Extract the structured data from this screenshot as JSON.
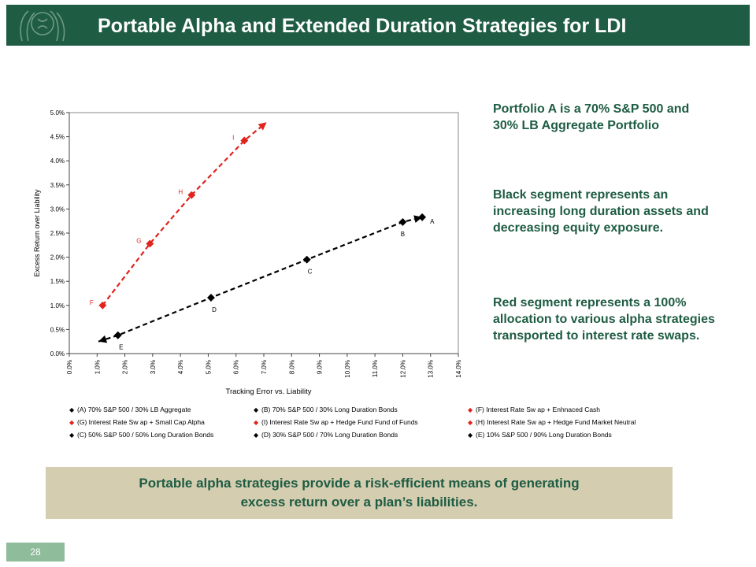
{
  "header": {
    "title": "Portable Alpha and Extended Duration Strategies for LDI"
  },
  "chart_data": {
    "type": "scatter",
    "xlabel": "Tracking Error vs. Liability",
    "ylabel": "Excess Return over Liability",
    "xlim": [
      0,
      14
    ],
    "ylim": [
      0,
      5
    ],
    "x_ticks": [
      "0.0%",
      "1.0%",
      "2.0%",
      "3.0%",
      "4.0%",
      "5.0%",
      "6.0%",
      "7.0%",
      "8.0%",
      "9.0%",
      "10.0%",
      "11.0%",
      "12.0%",
      "13.0%",
      "14.0%"
    ],
    "y_ticks": [
      "0.0%",
      "0.5%",
      "1.0%",
      "1.5%",
      "2.0%",
      "2.5%",
      "3.0%",
      "3.5%",
      "4.0%",
      "4.5%",
      "5.0%"
    ],
    "grid": false,
    "series": [
      {
        "name": "black",
        "color": "#000000",
        "line": "dashed",
        "points": [
          {
            "label": "",
            "x": 1.05,
            "y": 0.25
          },
          {
            "label": "E",
            "x": 1.75,
            "y": 0.38
          },
          {
            "label": "D",
            "x": 5.1,
            "y": 1.16
          },
          {
            "label": "C",
            "x": 8.55,
            "y": 1.95
          },
          {
            "label": "B",
            "x": 12.0,
            "y": 2.73
          },
          {
            "label": "A",
            "x": 12.7,
            "y": 2.83
          }
        ]
      },
      {
        "name": "red",
        "color": "#e0231c",
        "line": "dashed",
        "points": [
          {
            "label": "F",
            "x": 1.2,
            "y": 1.0
          },
          {
            "label": "G",
            "x": 2.9,
            "y": 2.28
          },
          {
            "label": "H",
            "x": 4.4,
            "y": 3.29
          },
          {
            "label": "I",
            "x": 6.3,
            "y": 4.42
          },
          {
            "label": "",
            "x": 7.1,
            "y": 4.8
          }
        ]
      }
    ],
    "legend": [
      {
        "text": "(A) 70% S&P 500 / 30% LB Aggregate",
        "color": "#000000"
      },
      {
        "text": "(B) 70% S&P 500 / 30% Long Duration Bonds",
        "color": "#000000"
      },
      {
        "text": "(F) Interest Rate Sw ap + Enhnaced Cash",
        "color": "#e0231c"
      },
      {
        "text": "(G) Interest Rate Sw ap + Small Cap Alpha",
        "color": "#e0231c"
      },
      {
        "text": "(I) Interest Rate Sw ap + Hedge Fund Fund of Funds",
        "color": "#e0231c"
      },
      {
        "text": "(H) Interest Rate Sw ap + Hedge Fund Market Neutral",
        "color": "#e0231c"
      },
      {
        "text": "(C) 50% S&P 500 / 50% Long Duration Bonds",
        "color": "#000000"
      },
      {
        "text": "(D) 30% S&P 500 / 70% Long Duration Bonds",
        "color": "#000000"
      },
      {
        "text": "(E) 10% S&P 500 / 90% Long Duration Bonds",
        "color": "#000000"
      }
    ]
  },
  "side_notes": {
    "note1": "Portfolio A is a 70% S&P 500 and 30% LB Aggregate Portfolio",
    "note2": "Black segment represents an increasing long duration assets and decreasing equity exposure.",
    "note3": "Red segment represents a 100% allocation to various alpha strategies transported to interest rate swaps."
  },
  "takeaway": {
    "line1": "Portable alpha strategies provide a risk-efficient means of generating",
    "line2": "excess return over a plan’s liabilities."
  },
  "page_number": "28"
}
